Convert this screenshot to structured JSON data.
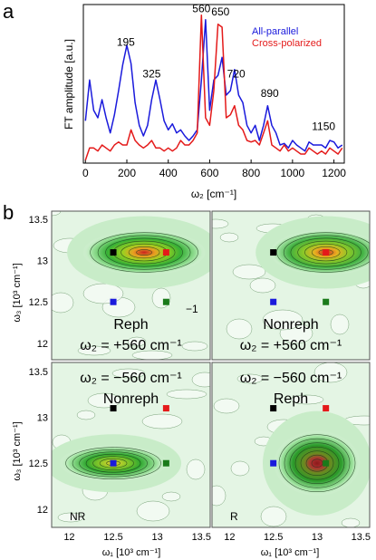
{
  "panel_a": {
    "letter": "a",
    "chart_data": {
      "type": "line",
      "ylabel": "FT amplitude [a.u.]",
      "xlabel": "ω₂ [cm⁻¹]",
      "xlim": [
        -10,
        1250
      ],
      "ylim": [
        0,
        1.05
      ],
      "xticks": [
        "0",
        "200",
        "400",
        "600",
        "800",
        "1000",
        "1200"
      ],
      "xtick_values": [
        0,
        200,
        400,
        600,
        800,
        1000,
        1200
      ],
      "legend": [
        {
          "name": "All-parallel",
          "color": "#1a1adc"
        },
        {
          "name": "Cross-polarized",
          "color": "#e41a1a"
        }
      ],
      "annotations": [
        {
          "text": "195",
          "x": 195,
          "y": 0.76
        },
        {
          "text": "325",
          "x": 320,
          "y": 0.55
        },
        {
          "text": "560",
          "x": 560,
          "y": 0.98
        },
        {
          "text": "650",
          "x": 652,
          "y": 0.96
        },
        {
          "text": "720",
          "x": 728,
          "y": 0.55
        },
        {
          "text": "890",
          "x": 890,
          "y": 0.42
        },
        {
          "text": "1150",
          "x": 1150,
          "y": 0.2
        }
      ],
      "series": [
        {
          "name": "All-parallel",
          "color": "#1a1adc",
          "x": [
            0,
            20,
            40,
            60,
            80,
            100,
            120,
            140,
            160,
            180,
            200,
            220,
            240,
            260,
            280,
            300,
            320,
            340,
            360,
            380,
            400,
            420,
            440,
            460,
            480,
            500,
            520,
            540,
            560,
            580,
            600,
            620,
            640,
            660,
            680,
            700,
            720,
            740,
            760,
            780,
            800,
            820,
            840,
            860,
            880,
            900,
            920,
            940,
            960,
            980,
            1000,
            1020,
            1040,
            1060,
            1080,
            1100,
            1120,
            1140,
            1160,
            1180,
            1200,
            1220,
            1240
          ],
          "y": [
            0.28,
            0.55,
            0.35,
            0.3,
            0.42,
            0.3,
            0.2,
            0.32,
            0.48,
            0.65,
            0.78,
            0.66,
            0.4,
            0.25,
            0.18,
            0.25,
            0.42,
            0.55,
            0.42,
            0.28,
            0.22,
            0.26,
            0.2,
            0.22,
            0.18,
            0.15,
            0.18,
            0.22,
            0.55,
            0.95,
            0.35,
            0.55,
            0.58,
            0.7,
            0.45,
            0.48,
            0.62,
            0.45,
            0.4,
            0.25,
            0.2,
            0.25,
            0.15,
            0.25,
            0.38,
            0.25,
            0.2,
            0.12,
            0.13,
            0.1,
            0.15,
            0.12,
            0.1,
            0.08,
            0.14,
            0.12,
            0.12,
            0.12,
            0.1,
            0.15,
            0.14,
            0.1,
            0.12
          ]
        },
        {
          "name": "Cross-polarized",
          "color": "#e41a1a",
          "x": [
            0,
            20,
            40,
            60,
            80,
            100,
            120,
            140,
            160,
            180,
            200,
            220,
            240,
            260,
            280,
            300,
            320,
            340,
            360,
            380,
            400,
            420,
            440,
            460,
            480,
            500,
            520,
            540,
            560,
            580,
            600,
            620,
            640,
            660,
            680,
            700,
            720,
            740,
            760,
            780,
            800,
            820,
            840,
            860,
            880,
            900,
            920,
            940,
            960,
            980,
            1000,
            1020,
            1040,
            1060,
            1080,
            1100,
            1120,
            1140,
            1160,
            1180,
            1200,
            1220,
            1240
          ],
          "y": [
            0.02,
            0.1,
            0.1,
            0.08,
            0.12,
            0.1,
            0.08,
            0.12,
            0.14,
            0.12,
            0.12,
            0.22,
            0.15,
            0.12,
            0.1,
            0.12,
            0.15,
            0.1,
            0.1,
            0.08,
            0.1,
            0.08,
            0.1,
            0.15,
            0.12,
            0.12,
            0.15,
            0.2,
            0.98,
            0.3,
            0.25,
            0.48,
            0.92,
            0.9,
            0.3,
            0.32,
            0.38,
            0.25,
            0.22,
            0.15,
            0.14,
            0.15,
            0.12,
            0.2,
            0.28,
            0.12,
            0.1,
            0.08,
            0.12,
            0.08,
            0.1,
            0.08,
            0.06,
            0.06,
            0.1,
            0.08,
            0.06,
            0.08,
            0.06,
            0.1,
            0.08,
            0.06,
            0.1
          ]
        }
      ]
    }
  },
  "panel_b": {
    "letter": "b",
    "ylabel": "ω₃ [10³ cm⁻¹]",
    "xlabel": "ω₁ [10³ cm⁻¹]",
    "xlim": [
      11.8,
      13.6
    ],
    "ylim": [
      11.8,
      13.6
    ],
    "xticks": [
      "12",
      "12.5",
      "13",
      "13.5"
    ],
    "xtick_values": [
      12,
      12.5,
      13,
      13.5
    ],
    "yticks": [
      "12",
      "12.5",
      "13",
      "13.5"
    ],
    "ytick_values": [
      12,
      12.5,
      13,
      13.5
    ],
    "maps": [
      {
        "id": "top-left",
        "title": "Reph",
        "subtitle": "ω₂ = +560 cm⁻¹",
        "corner_text": "−1",
        "peak": {
          "x": 12.85,
          "y": 13.1
        },
        "markers": [
          {
            "x": 12.5,
            "y": 13.1,
            "color": "#000000"
          },
          {
            "x": 13.1,
            "y": 13.1,
            "color": "#e41a1a"
          },
          {
            "x": 12.5,
            "y": 12.5,
            "color": "#1a1adc"
          },
          {
            "x": 13.1,
            "y": 12.5,
            "color": "#1a7a1a"
          }
        ]
      },
      {
        "id": "top-right",
        "title": "Nonreph",
        "subtitle": "ω₂ = +560 cm⁻¹",
        "corner_text": "",
        "peak": {
          "x": 13.1,
          "y": 13.1
        },
        "markers": [
          {
            "x": 12.5,
            "y": 13.1,
            "color": "#000000"
          },
          {
            "x": 13.1,
            "y": 13.1,
            "color": "#e41a1a"
          },
          {
            "x": 12.5,
            "y": 12.5,
            "color": "#1a1adc"
          },
          {
            "x": 13.1,
            "y": 12.5,
            "color": "#1a7a1a"
          }
        ]
      },
      {
        "id": "bottom-left",
        "title": "Nonreph",
        "subtitle": "ω₂ = −560 cm⁻¹",
        "corner_text": "NR",
        "peak": {
          "x": 12.5,
          "y": 12.5
        },
        "markers": [
          {
            "x": 12.5,
            "y": 13.1,
            "color": "#000000"
          },
          {
            "x": 13.1,
            "y": 13.1,
            "color": "#e41a1a"
          },
          {
            "x": 12.5,
            "y": 12.5,
            "color": "#1a1adc"
          },
          {
            "x": 13.1,
            "y": 12.5,
            "color": "#1a7a1a"
          }
        ]
      },
      {
        "id": "bottom-right",
        "title": "Reph",
        "subtitle": "ω₂ = −560 cm⁻¹",
        "corner_text": "R",
        "peak": {
          "x": 13.0,
          "y": 12.5
        },
        "markers": [
          {
            "x": 12.5,
            "y": 13.1,
            "color": "#000000"
          },
          {
            "x": 13.1,
            "y": 13.1,
            "color": "#e41a1a"
          },
          {
            "x": 12.5,
            "y": 12.5,
            "color": "#1a1adc"
          },
          {
            "x": 13.1,
            "y": 12.5,
            "color": "#1a7a1a"
          }
        ]
      }
    ]
  }
}
